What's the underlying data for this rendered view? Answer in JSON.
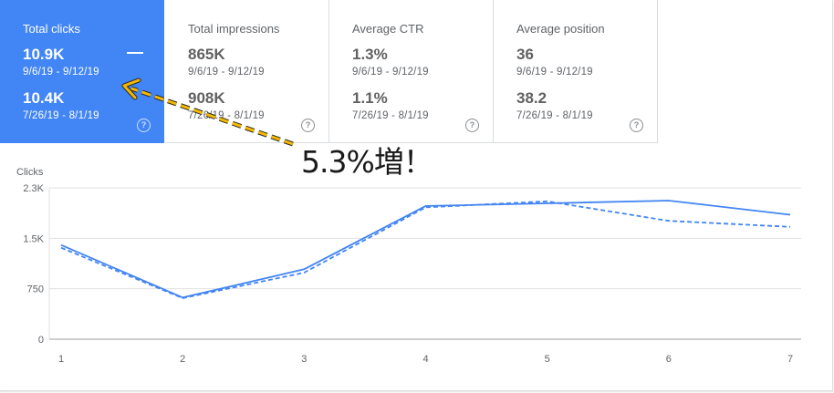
{
  "cards": [
    {
      "title": "Total clicks",
      "current_value": "10.9K",
      "current_range": "9/6/19 - 9/12/19",
      "previous_value": "10.4K",
      "previous_range": "7/26/19 - 8/1/19",
      "active": true
    },
    {
      "title": "Total impressions",
      "current_value": "865K",
      "current_range": "9/6/19 - 9/12/19",
      "previous_value": "908K",
      "previous_range": "7/26/19 - 8/1/19",
      "active": false
    },
    {
      "title": "Average CTR",
      "current_value": "1.3%",
      "current_range": "9/6/19 - 9/12/19",
      "previous_value": "1.1%",
      "previous_range": "7/26/19 - 8/1/19",
      "active": false
    },
    {
      "title": "Average position",
      "current_value": "36",
      "current_range": "9/6/19 - 9/12/19",
      "previous_value": "38.2",
      "previous_range": "7/26/19 - 8/1/19",
      "active": false
    }
  ],
  "help_symbol": "?",
  "annotation": {
    "text": "5.3%増！",
    "arrow_color": "#f5b800"
  },
  "colors": {
    "accent": "#4285f4",
    "card_text": "#616161",
    "grid": "#e0e0e0",
    "axis": "#9e9e9e"
  },
  "chart_data": {
    "type": "line",
    "ylabel": "Clicks",
    "xlabel": "",
    "x": [
      1,
      2,
      3,
      4,
      5,
      6,
      7
    ],
    "y_ticks": [
      {
        "value": 0,
        "label": "0"
      },
      {
        "value": 750,
        "label": "750"
      },
      {
        "value": 1500,
        "label": "1.5K"
      },
      {
        "value": 2250,
        "label": "2.3K"
      }
    ],
    "ylim": [
      0,
      2250
    ],
    "series": [
      {
        "style": "solid",
        "values": [
          1400,
          620,
          1040,
          1980,
          2020,
          2060,
          1850
        ]
      },
      {
        "style": "dashed",
        "values": [
          1360,
          610,
          990,
          1960,
          2050,
          1760,
          1670
        ]
      }
    ],
    "grid": true
  }
}
